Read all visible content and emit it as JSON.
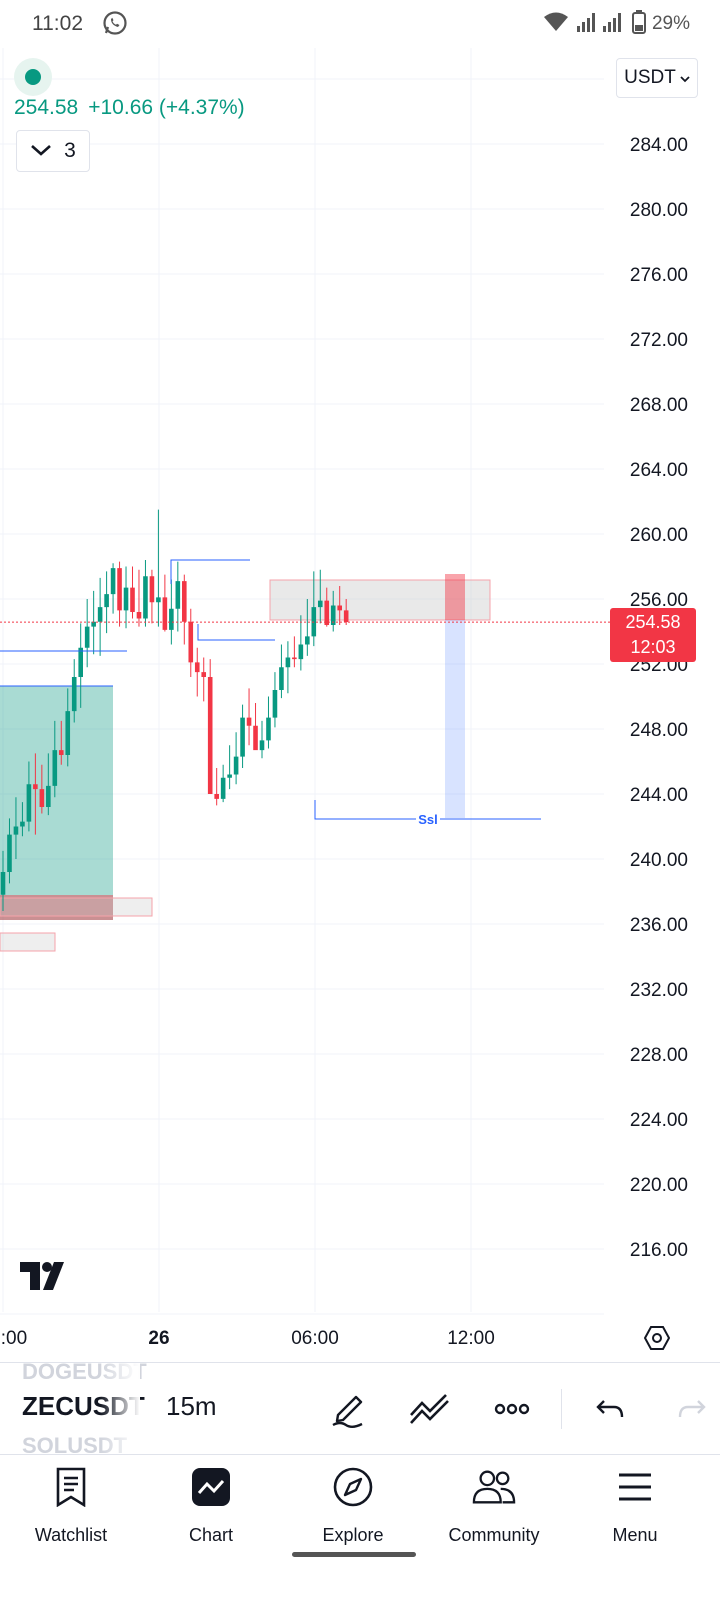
{
  "status_bar": {
    "time": "11:02",
    "battery": "29%"
  },
  "legend": {
    "price": "254.58",
    "change": "+10.66 (+4.37%)",
    "collapsed_count": "3",
    "status_color": "#089981"
  },
  "currency_selector": "USDT",
  "price_axis": {
    "labels": [
      "284.00",
      "280.00",
      "276.00",
      "272.00",
      "268.00",
      "264.00",
      "260.00",
      "256.00",
      "252.00",
      "248.00",
      "244.00",
      "240.00",
      "236.00",
      "232.00",
      "228.00",
      "224.00",
      "220.00",
      "216.00"
    ]
  },
  "time_axis": {
    "labels": [
      ":00",
      "26",
      "06:00",
      "12:00"
    ]
  },
  "last_price_tag": {
    "price": "254.58",
    "countdown": "12:03"
  },
  "annotation": "Ssl",
  "colors": {
    "up": "#089981",
    "down": "#f23645",
    "line": "#2962ff"
  },
  "chart_data": {
    "type": "candlestick",
    "interval": "15m",
    "ylim": [
      212,
      288
    ],
    "x": [
      "25 21:45",
      "25 22:00",
      "25 22:15",
      "25 22:30",
      "25 22:45",
      "25 23:00",
      "25 23:15",
      "25 23:30",
      "25 23:45",
      "26 00:00",
      "26 00:15",
      "26 00:30",
      "26 00:45",
      "26 01:00",
      "26 01:15",
      "26 01:30",
      "26 01:45",
      "26 02:00",
      "26 02:15",
      "26 02:30",
      "26 02:45",
      "26 03:00",
      "26 03:15",
      "26 03:30",
      "26 03:45",
      "26 04:00",
      "26 04:15",
      "26 04:30",
      "26 04:45",
      "26 05:00",
      "26 05:15",
      "26 05:30",
      "26 05:45",
      "26 06:00",
      "26 06:15",
      "26 06:30",
      "26 06:45",
      "26 07:00",
      "26 07:15",
      "26 07:30",
      "26 07:45",
      "26 08:00",
      "26 08:15",
      "26 08:30",
      "26 08:45",
      "26 09:00",
      "26 09:15",
      "26 09:30",
      "26 09:45",
      "26 10:00",
      "26 10:15",
      "26 10:30",
      "26 10:45",
      "26 11:00"
    ],
    "open": [
      237.8,
      239.2,
      241.5,
      242.0,
      242.3,
      244.6,
      244.3,
      243.2,
      244.5,
      246.7,
      246.4,
      249.1,
      251.2,
      253.0,
      254.3,
      254.6,
      255.5,
      256.3,
      257.9,
      255.3,
      256.7,
      255.2,
      254.8,
      257.4,
      255.8,
      256.1,
      254.1,
      255.4,
      257.1,
      254.6,
      252.1,
      251.5,
      251.2,
      244.0,
      243.7,
      245.0,
      245.2,
      246.3,
      248.7,
      248.2,
      246.7,
      247.3,
      248.7,
      250.4,
      251.8,
      252.4,
      252.3,
      253.2,
      253.7,
      255.5,
      255.9,
      254.4,
      255.6,
      255.3
    ],
    "high": [
      240.5,
      242.5,
      243.8,
      243.5,
      246.0,
      246.5,
      245.8,
      246.5,
      248.5,
      248.5,
      250.5,
      252.3,
      254.5,
      256.0,
      256.5,
      257.3,
      257.7,
      258.2,
      258.3,
      258.0,
      258.0,
      257.8,
      258.4,
      257.8,
      261.5,
      257.5,
      257.2,
      258.3,
      257.5,
      255.4,
      253.0,
      252.4,
      252.3,
      245.6,
      245.8,
      247.0,
      247.8,
      249.5,
      250.5,
      249.6,
      248.5,
      250.0,
      251.5,
      253.2,
      253.4,
      253.7,
      255.0,
      256.0,
      257.7,
      257.8,
      256.7,
      256.5,
      256.8,
      256.0
    ],
    "low": [
      236.8,
      238.5,
      240.0,
      241.4,
      241.7,
      241.5,
      242.8,
      242.7,
      243.8,
      245.8,
      245.7,
      248.4,
      249.3,
      251.8,
      252.6,
      252.5,
      253.9,
      255.1,
      254.3,
      254.2,
      254.8,
      254.3,
      254.3,
      254.5,
      254.3,
      254.0,
      253.2,
      254.0,
      253.2,
      251.2,
      250.0,
      249.7,
      244.0,
      243.3,
      243.5,
      244.3,
      244.6,
      245.6,
      247.0,
      246.8,
      246.2,
      246.8,
      248.1,
      249.9,
      250.2,
      251.8,
      251.6,
      252.5,
      253.1,
      254.5,
      254.3,
      254.0,
      254.4,
      254.4
    ],
    "close": [
      239.2,
      241.5,
      242.0,
      242.3,
      244.6,
      244.3,
      243.2,
      244.5,
      246.7,
      246.4,
      249.1,
      251.2,
      253.0,
      254.3,
      254.6,
      255.5,
      256.3,
      257.9,
      255.3,
      256.7,
      255.2,
      254.8,
      257.4,
      255.8,
      256.1,
      254.1,
      255.4,
      257.1,
      254.6,
      252.1,
      251.5,
      251.2,
      244.0,
      243.7,
      245.0,
      245.2,
      246.3,
      248.7,
      248.2,
      246.7,
      247.3,
      248.7,
      250.4,
      251.8,
      252.4,
      252.3,
      253.2,
      253.7,
      255.5,
      255.9,
      254.4,
      255.6,
      255.3,
      254.58
    ]
  }
}
